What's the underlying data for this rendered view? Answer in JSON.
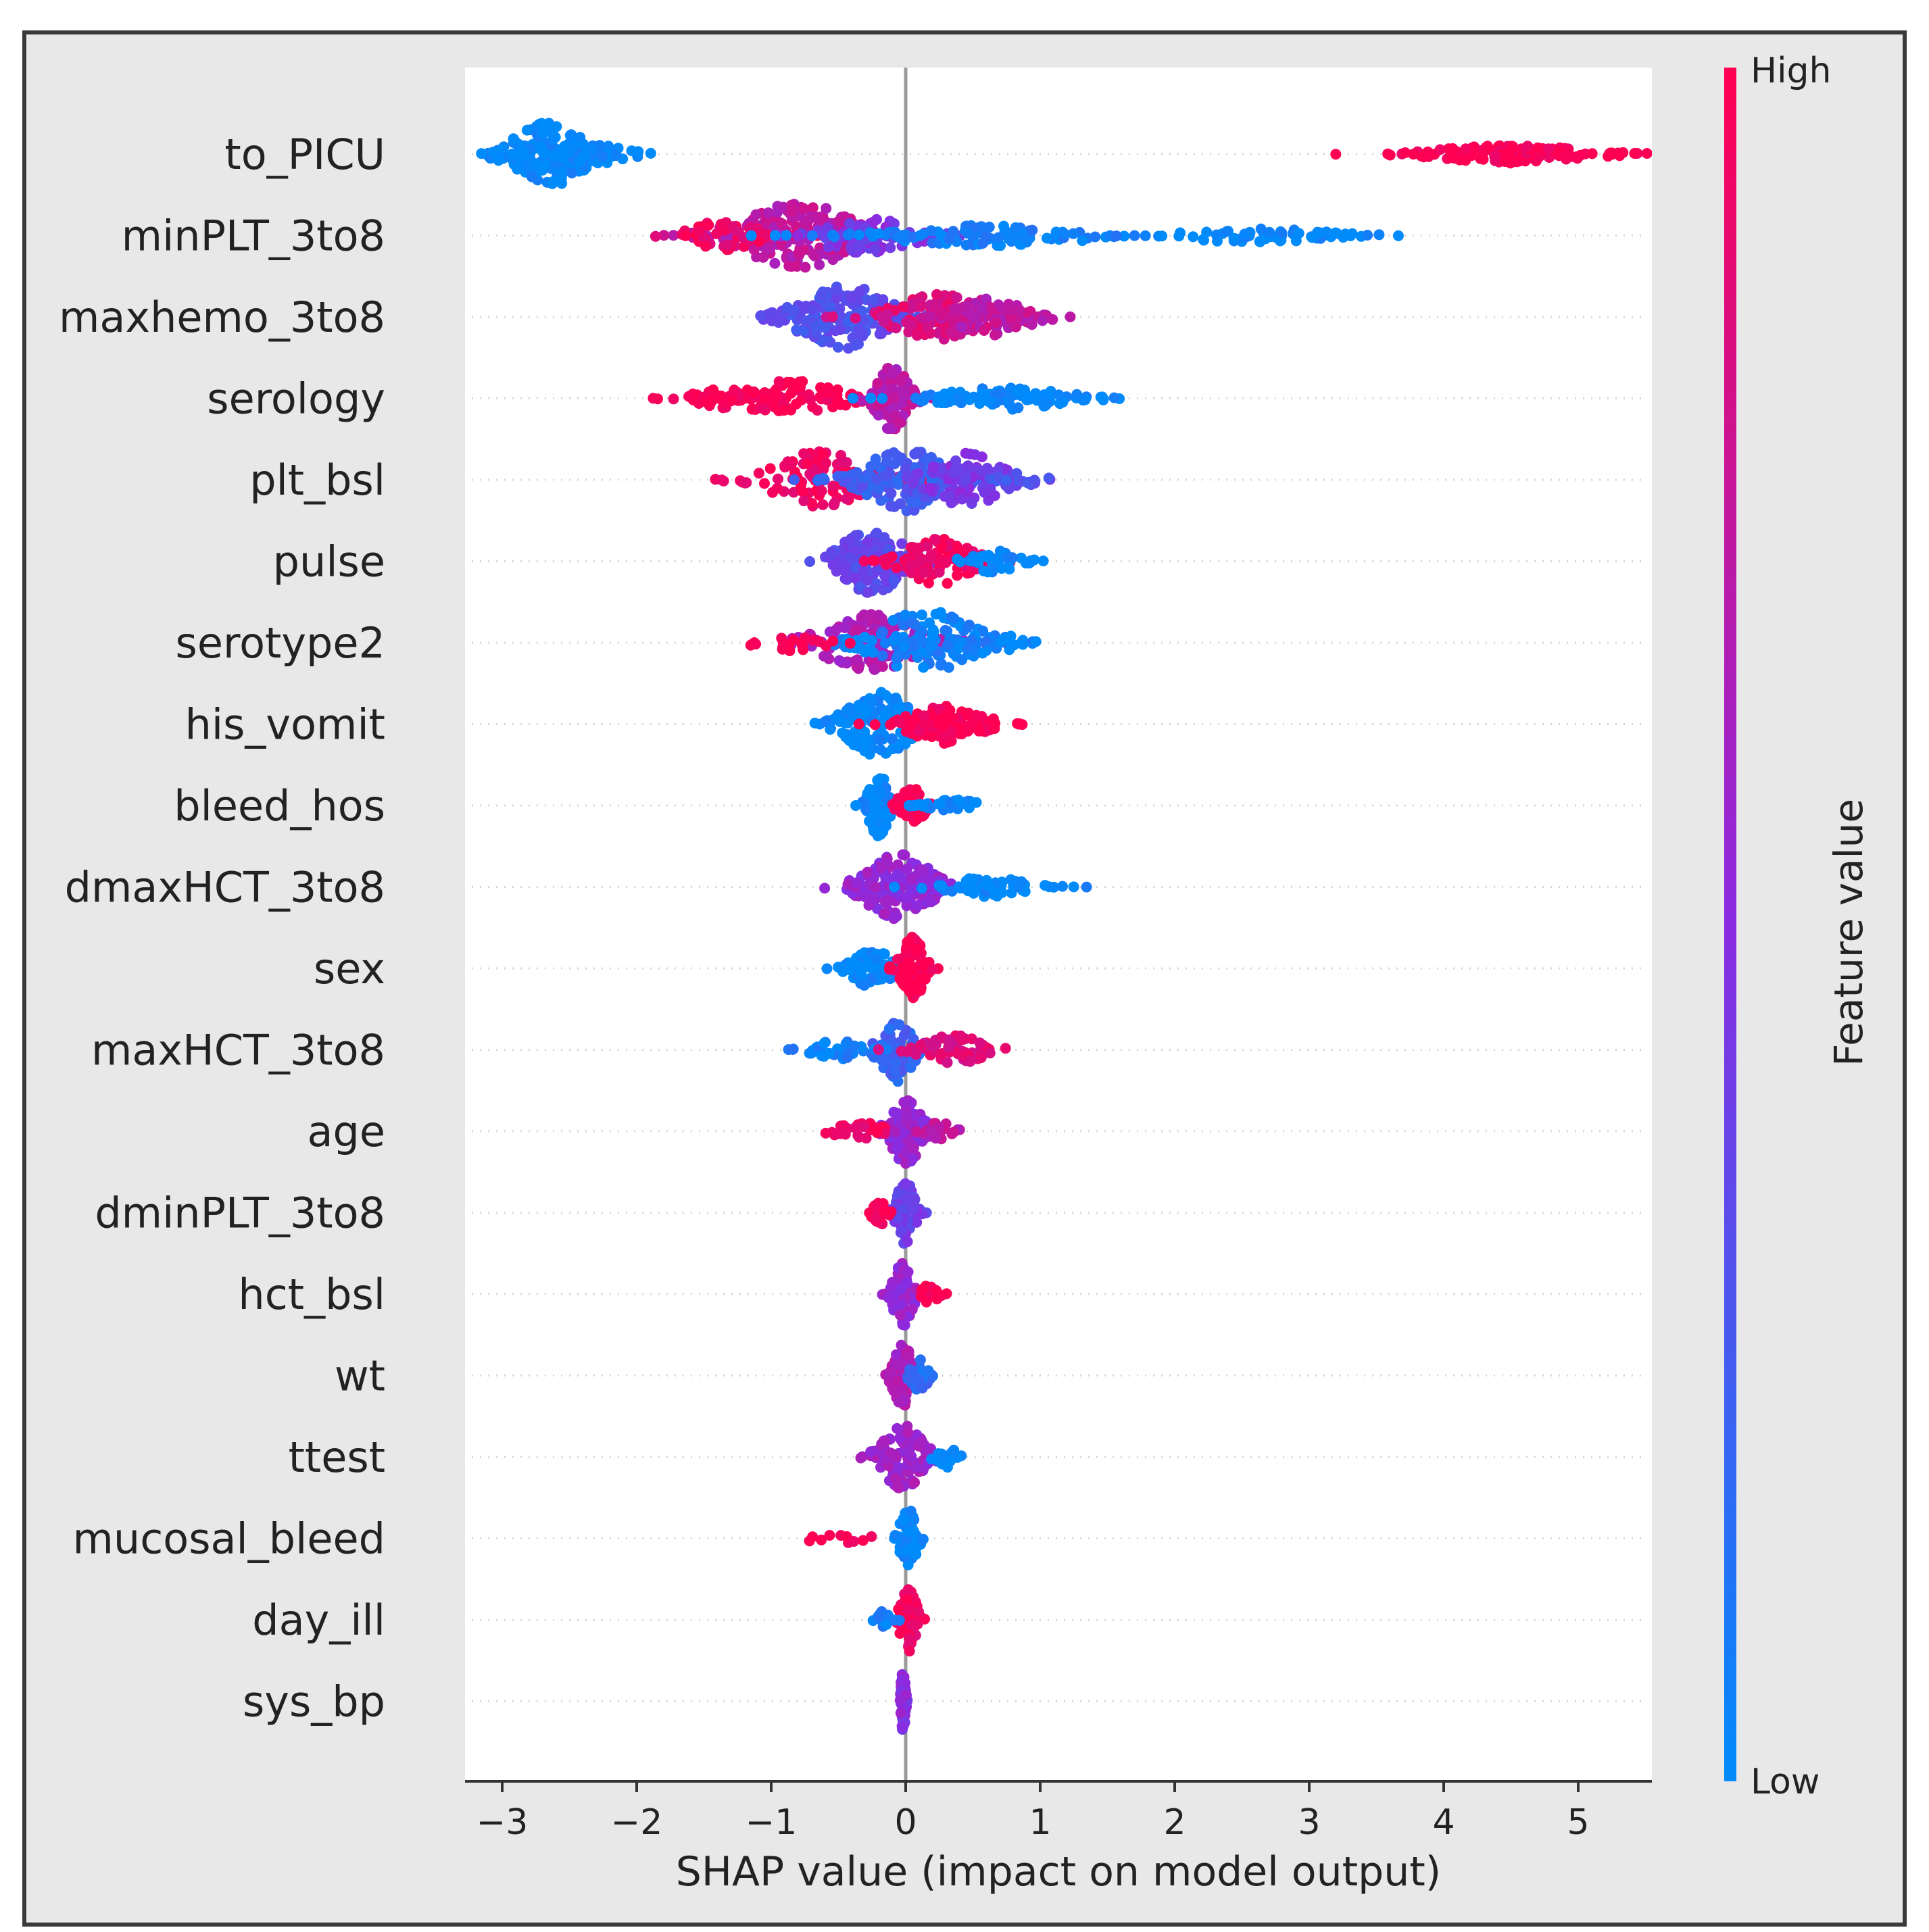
{
  "chart_data": {
    "type": "scatter",
    "subtype": "shap_beeswarm",
    "xlabel": "SHAP value (impact on model output)",
    "xlim": [
      -3.0,
      5.6
    ],
    "xticks": [
      -3,
      -2,
      -1,
      0,
      1,
      2,
      3,
      4,
      5
    ],
    "xtick_labels": [
      "−3",
      "−2",
      "−1",
      "0",
      "1",
      "2",
      "3",
      "4",
      "5"
    ],
    "colorbar": {
      "title": "Feature value",
      "high_label": "High",
      "low_label": "Low",
      "high_color": "#ff0052",
      "mid_color": "#8a2be2",
      "low_color": "#008bfb"
    },
    "features": [
      {
        "name": "to_PICU",
        "clusters": [
          {
            "x": -2.65,
            "spread": 0.22,
            "w": 1.0,
            "n": 150,
            "c": 0.0
          },
          {
            "x": -2.3,
            "spread": 0.18,
            "w": 0.35,
            "n": 40,
            "c": 0.0
          },
          {
            "x": 4.5,
            "spread": 0.45,
            "w": 0.28,
            "n": 130,
            "c": 1.0
          }
        ]
      },
      {
        "name": "minPLT_3to8",
        "clusters": [
          {
            "x": -0.8,
            "spread": 0.35,
            "w": 1.0,
            "n": 180,
            "c": 0.72
          },
          {
            "x": -1.35,
            "spread": 0.22,
            "w": 0.45,
            "n": 50,
            "c": 0.92
          },
          {
            "x": -0.3,
            "spread": 0.3,
            "w": 0.55,
            "n": 70,
            "c": 0.45
          },
          {
            "x": 0.6,
            "spread": 0.6,
            "w": 0.32,
            "n": 110,
            "c": 0.05
          },
          {
            "x": 2.6,
            "spread": 0.45,
            "w": 0.22,
            "n": 60,
            "c": 0.0
          }
        ]
      },
      {
        "name": "maxhemo_3to8",
        "clusters": [
          {
            "x": -0.45,
            "spread": 0.28,
            "w": 1.0,
            "n": 170,
            "c": 0.3
          },
          {
            "x": 0.25,
            "spread": 0.28,
            "w": 0.7,
            "n": 110,
            "c": 0.85
          },
          {
            "x": 0.65,
            "spread": 0.22,
            "w": 0.6,
            "n": 80,
            "c": 0.72
          }
        ]
      },
      {
        "name": "serology",
        "clusters": [
          {
            "x": -0.85,
            "spread": 0.3,
            "w": 0.55,
            "n": 90,
            "c": 1.0
          },
          {
            "x": -1.35,
            "spread": 0.2,
            "w": 0.3,
            "n": 40,
            "c": 1.0
          },
          {
            "x": -0.1,
            "spread": 0.1,
            "w": 1.0,
            "n": 90,
            "c": 0.7
          },
          {
            "x": 0.75,
            "spread": 0.38,
            "w": 0.35,
            "n": 90,
            "c": 0.0
          }
        ]
      },
      {
        "name": "plt_bsl",
        "clusters": [
          {
            "x": -0.65,
            "spread": 0.3,
            "w": 0.9,
            "n": 110,
            "c": 0.95
          },
          {
            "x": 0.0,
            "spread": 0.25,
            "w": 1.0,
            "n": 130,
            "c": 0.25
          },
          {
            "x": 0.45,
            "spread": 0.22,
            "w": 0.85,
            "n": 90,
            "c": 0.45
          },
          {
            "x": 0.85,
            "spread": 0.12,
            "w": 0.3,
            "n": 20,
            "c": 0.3
          }
        ]
      },
      {
        "name": "pulse",
        "clusters": [
          {
            "x": -0.25,
            "spread": 0.2,
            "w": 1.0,
            "n": 140,
            "c": 0.35
          },
          {
            "x": 0.25,
            "spread": 0.2,
            "w": 0.75,
            "n": 100,
            "c": 0.95
          },
          {
            "x": 0.65,
            "spread": 0.15,
            "w": 0.35,
            "n": 40,
            "c": 0.0
          }
        ]
      },
      {
        "name": "serotype2",
        "clusters": [
          {
            "x": -0.25,
            "spread": 0.3,
            "w": 0.9,
            "n": 140,
            "c": 0.65
          },
          {
            "x": 0.15,
            "spread": 0.3,
            "w": 1.0,
            "n": 140,
            "c": 0.05
          },
          {
            "x": -0.85,
            "spread": 0.2,
            "w": 0.25,
            "n": 20,
            "c": 1.0
          },
          {
            "x": 0.8,
            "spread": 0.1,
            "w": 0.25,
            "n": 12,
            "c": 0.0
          }
        ]
      },
      {
        "name": "his_vomit",
        "clusters": [
          {
            "x": -0.2,
            "spread": 0.2,
            "w": 1.0,
            "n": 150,
            "c": 0.0
          },
          {
            "x": 0.3,
            "spread": 0.22,
            "w": 0.6,
            "n": 110,
            "c": 1.0
          }
        ]
      },
      {
        "name": "bleed_hos",
        "clusters": [
          {
            "x": -0.2,
            "spread": 0.06,
            "w": 1.0,
            "n": 80,
            "c": 0.0
          },
          {
            "x": 0.05,
            "spread": 0.08,
            "w": 0.55,
            "n": 50,
            "c": 1.0
          },
          {
            "x": 0.35,
            "spread": 0.16,
            "w": 0.18,
            "n": 35,
            "c": 0.0
          }
        ]
      },
      {
        "name": "dmaxHCT_3to8",
        "clusters": [
          {
            "x": -0.05,
            "spread": 0.22,
            "w": 1.0,
            "n": 160,
            "c": 0.55
          },
          {
            "x": 0.6,
            "spread": 0.25,
            "w": 0.3,
            "n": 60,
            "c": 0.0
          }
        ]
      },
      {
        "name": "sex",
        "clusters": [
          {
            "x": -0.25,
            "spread": 0.12,
            "w": 0.6,
            "n": 80,
            "c": 0.0
          },
          {
            "x": 0.05,
            "spread": 0.07,
            "w": 1.0,
            "n": 90,
            "c": 1.0
          }
        ]
      },
      {
        "name": "maxHCT_3to8",
        "clusters": [
          {
            "x": -0.07,
            "spread": 0.1,
            "w": 1.0,
            "n": 80,
            "c": 0.2
          },
          {
            "x": -0.5,
            "spread": 0.15,
            "w": 0.3,
            "n": 35,
            "c": 0.05
          },
          {
            "x": 0.35,
            "spread": 0.2,
            "w": 0.45,
            "n": 70,
            "c": 0.85
          }
        ]
      },
      {
        "name": "age",
        "clusters": [
          {
            "x": 0.0,
            "spread": 0.1,
            "w": 1.0,
            "n": 100,
            "c": 0.55
          },
          {
            "x": -0.35,
            "spread": 0.15,
            "w": 0.3,
            "n": 30,
            "c": 0.95
          },
          {
            "x": 0.25,
            "spread": 0.08,
            "w": 0.3,
            "n": 20,
            "c": 0.7
          }
        ]
      },
      {
        "name": "dminPLT_3to8",
        "clusters": [
          {
            "x": 0.0,
            "spread": 0.06,
            "w": 1.0,
            "n": 90,
            "c": 0.4
          },
          {
            "x": -0.2,
            "spread": 0.04,
            "w": 0.45,
            "n": 25,
            "c": 1.0
          }
        ]
      },
      {
        "name": "hct_bsl",
        "clusters": [
          {
            "x": -0.02,
            "spread": 0.06,
            "w": 1.0,
            "n": 90,
            "c": 0.55
          },
          {
            "x": 0.18,
            "spread": 0.05,
            "w": 0.3,
            "n": 15,
            "c": 1.0
          }
        ]
      },
      {
        "name": "wt",
        "clusters": [
          {
            "x": -0.02,
            "spread": 0.06,
            "w": 1.0,
            "n": 80,
            "c": 0.65
          },
          {
            "x": 0.1,
            "spread": 0.05,
            "w": 0.5,
            "n": 30,
            "c": 0.15
          }
        ]
      },
      {
        "name": "ttest",
        "clusters": [
          {
            "x": -0.02,
            "spread": 0.13,
            "w": 1.0,
            "n": 100,
            "c": 0.6
          },
          {
            "x": 0.3,
            "spread": 0.06,
            "w": 0.35,
            "n": 15,
            "c": 0.0
          }
        ]
      },
      {
        "name": "mucosal_bleed",
        "clusters": [
          {
            "x": 0.02,
            "spread": 0.05,
            "w": 1.0,
            "n": 60,
            "c": 0.0
          },
          {
            "x": -0.5,
            "spread": 0.2,
            "w": 0.15,
            "n": 10,
            "c": 1.0
          }
        ]
      },
      {
        "name": "day_ill",
        "clusters": [
          {
            "x": 0.02,
            "spread": 0.05,
            "w": 1.0,
            "n": 60,
            "c": 0.95
          },
          {
            "x": -0.15,
            "spread": 0.05,
            "w": 0.3,
            "n": 15,
            "c": 0.05
          }
        ]
      },
      {
        "name": "sys_bp",
        "clusters": [
          {
            "x": -0.02,
            "spread": 0.015,
            "w": 1.0,
            "n": 60,
            "c": 0.5
          }
        ]
      }
    ]
  }
}
